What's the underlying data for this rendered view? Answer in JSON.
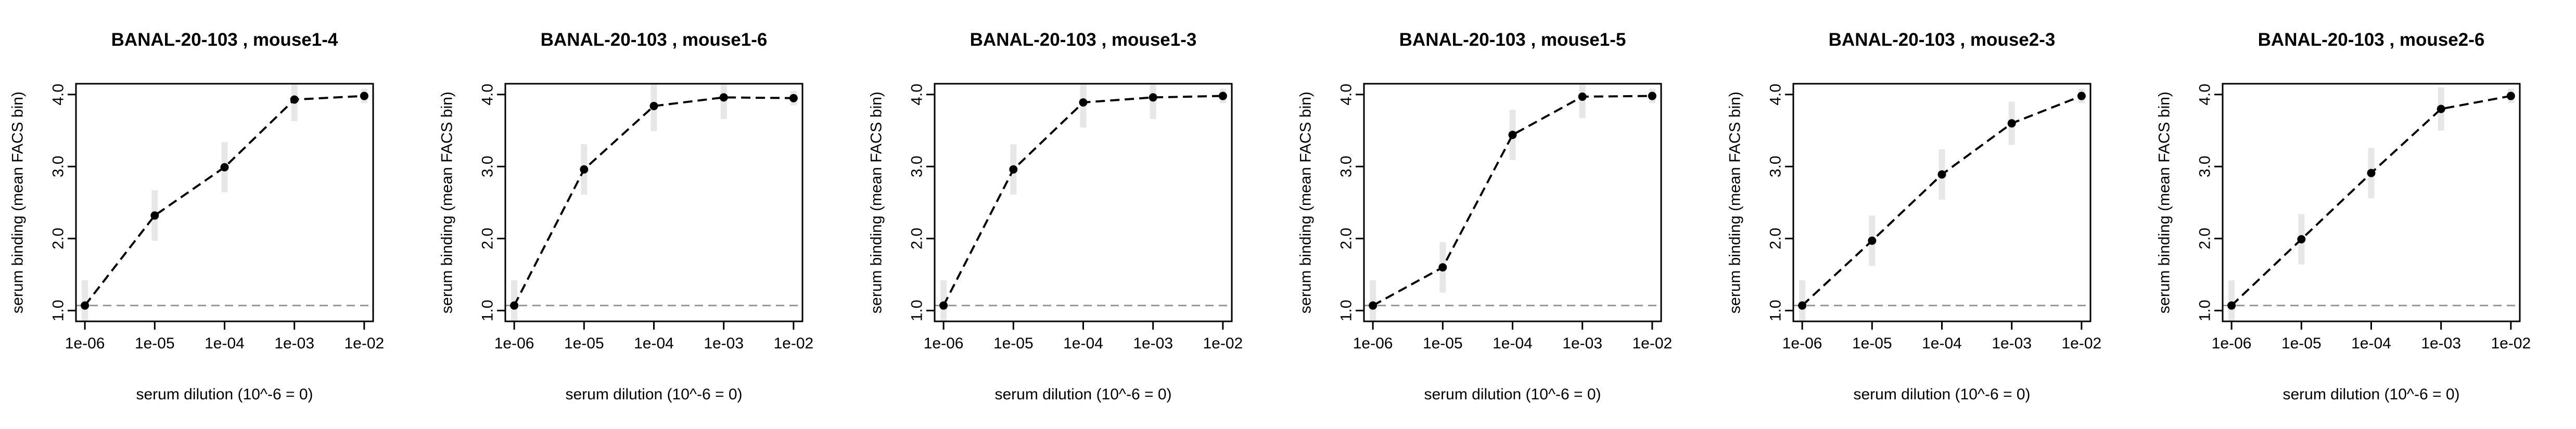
{
  "chart_data": [
    {
      "type": "line",
      "title": "BANAL-20-103 , mouse1-4",
      "xlabel": "serum dilution (10^-6 = 0)",
      "ylabel": "serum binding (mean FACS bin)",
      "x_scale": "log",
      "x": [
        1e-06,
        1e-05,
        0.0001,
        0.001,
        0.01
      ],
      "xtick_labels": [
        "1e-06",
        "1e-05",
        "1e-04",
        "1e-03",
        "1e-02"
      ],
      "yticks": [
        1.0,
        2.0,
        3.0,
        4.0
      ],
      "ytick_labels": [
        "1.0",
        "2.0",
        "3.0",
        "4.0"
      ],
      "ylim": [
        0.85,
        4.15
      ],
      "values": [
        1.07,
        2.32,
        2.99,
        3.93,
        3.98
      ],
      "baseline": 1.07,
      "grid": false
    },
    {
      "type": "line",
      "title": "BANAL-20-103 , mouse1-6",
      "xlabel": "serum dilution (10^-6 = 0)",
      "ylabel": "serum binding (mean FACS bin)",
      "x_scale": "log",
      "x": [
        1e-06,
        1e-05,
        0.0001,
        0.001,
        0.01
      ],
      "xtick_labels": [
        "1e-06",
        "1e-05",
        "1e-04",
        "1e-03",
        "1e-02"
      ],
      "yticks": [
        1.0,
        2.0,
        3.0,
        4.0
      ],
      "ytick_labels": [
        "1.0",
        "2.0",
        "3.0",
        "4.0"
      ],
      "ylim": [
        0.85,
        4.15
      ],
      "values": [
        1.07,
        2.96,
        3.84,
        3.96,
        3.95
      ],
      "baseline": 1.07,
      "grid": false
    },
    {
      "type": "line",
      "title": "BANAL-20-103 , mouse1-3",
      "xlabel": "serum dilution (10^-6 = 0)",
      "ylabel": "serum binding (mean FACS bin)",
      "x_scale": "log",
      "x": [
        1e-06,
        1e-05,
        0.0001,
        0.001,
        0.01
      ],
      "xtick_labels": [
        "1e-06",
        "1e-05",
        "1e-04",
        "1e-03",
        "1e-02"
      ],
      "yticks": [
        1.0,
        2.0,
        3.0,
        4.0
      ],
      "ytick_labels": [
        "1.0",
        "2.0",
        "3.0",
        "4.0"
      ],
      "ylim": [
        0.85,
        4.15
      ],
      "values": [
        1.07,
        2.96,
        3.89,
        3.96,
        3.98
      ],
      "baseline": 1.07,
      "grid": false
    },
    {
      "type": "line",
      "title": "BANAL-20-103 , mouse1-5",
      "xlabel": "serum dilution (10^-6 = 0)",
      "ylabel": "serum binding (mean FACS bin)",
      "x_scale": "log",
      "x": [
        1e-06,
        1e-05,
        0.0001,
        0.001,
        0.01
      ],
      "xtick_labels": [
        "1e-06",
        "1e-05",
        "1e-04",
        "1e-03",
        "1e-02"
      ],
      "yticks": [
        1.0,
        2.0,
        3.0,
        4.0
      ],
      "ytick_labels": [
        "1.0",
        "2.0",
        "3.0",
        "4.0"
      ],
      "ylim": [
        0.85,
        4.15
      ],
      "values": [
        1.07,
        1.6,
        3.44,
        3.97,
        3.98
      ],
      "baseline": 1.07,
      "grid": false
    },
    {
      "type": "line",
      "title": "BANAL-20-103 , mouse2-3",
      "xlabel": "serum dilution (10^-6 = 0)",
      "ylabel": "serum binding (mean FACS bin)",
      "x_scale": "log",
      "x": [
        1e-06,
        1e-05,
        0.0001,
        0.001,
        0.01
      ],
      "xtick_labels": [
        "1e-06",
        "1e-05",
        "1e-04",
        "1e-03",
        "1e-02"
      ],
      "yticks": [
        1.0,
        2.0,
        3.0,
        4.0
      ],
      "ytick_labels": [
        "1.0",
        "2.0",
        "3.0",
        "4.0"
      ],
      "ylim": [
        0.85,
        4.15
      ],
      "values": [
        1.07,
        1.97,
        2.89,
        3.6,
        3.98
      ],
      "baseline": 1.07,
      "grid": false
    },
    {
      "type": "line",
      "title": "BANAL-20-103 , mouse2-6",
      "xlabel": "serum dilution (10^-6 = 0)",
      "ylabel": "serum binding (mean FACS bin)",
      "x_scale": "log",
      "x": [
        1e-06,
        1e-05,
        0.0001,
        0.001,
        0.01
      ],
      "xtick_labels": [
        "1e-06",
        "1e-05",
        "1e-04",
        "1e-03",
        "1e-02"
      ],
      "yticks": [
        1.0,
        2.0,
        3.0,
        4.0
      ],
      "ytick_labels": [
        "1.0",
        "2.0",
        "3.0",
        "4.0"
      ],
      "ylim": [
        0.85,
        4.15
      ],
      "values": [
        1.07,
        1.99,
        2.91,
        3.8,
        3.98
      ],
      "baseline": 1.07,
      "grid": false
    }
  ],
  "colors": {
    "line": "#000000",
    "point": "#000000",
    "baseline": "#999999",
    "spread": "#bbbbbb"
  }
}
